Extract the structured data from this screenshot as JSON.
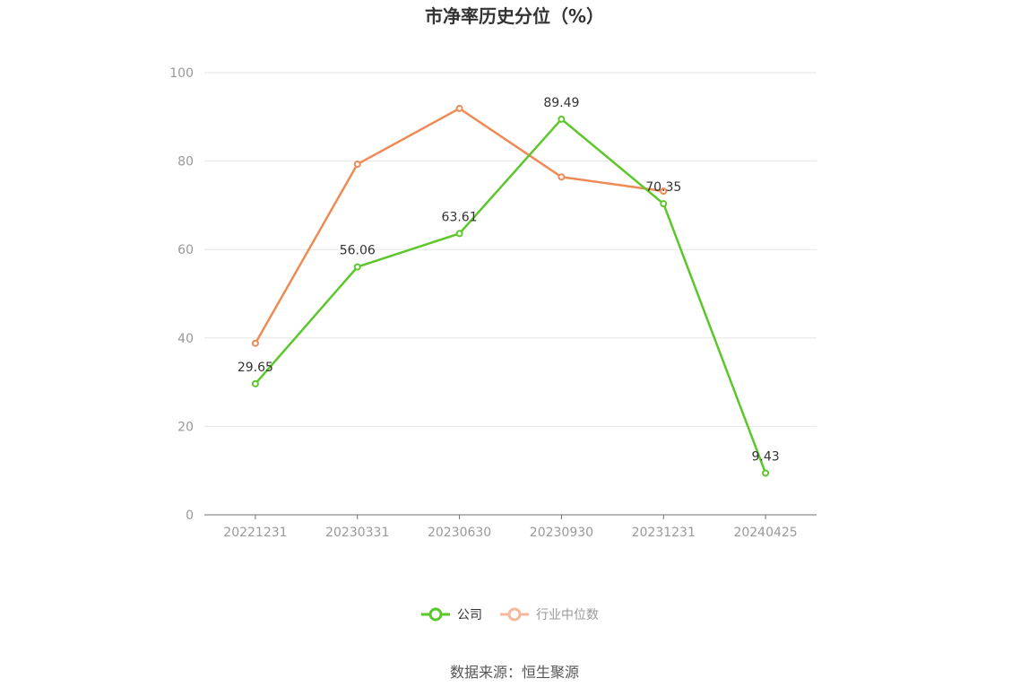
{
  "chart_data": {
    "type": "line",
    "title": "市净率历史分位（%）",
    "categories": [
      "20221231",
      "20230331",
      "20230630",
      "20230930",
      "20231231",
      "20240425"
    ],
    "ylim": [
      0,
      100
    ],
    "yticks": [
      0,
      20,
      40,
      60,
      80,
      100
    ],
    "grid": true,
    "legend_position": "bottom",
    "series": [
      {
        "name": "公司",
        "color": "#5cc72a",
        "values": [
          29.65,
          56.06,
          63.61,
          89.49,
          70.35,
          9.43
        ],
        "labels": [
          "29.65",
          "56.06",
          "63.61",
          "89.49",
          "70.35",
          "9.43"
        ]
      },
      {
        "name": "行业中位数",
        "color": "#f08a55",
        "legend_color": "#f6b79a",
        "values": [
          38.8,
          79.3,
          91.9,
          76.4,
          73.2,
          null
        ]
      }
    ],
    "source": "数据来源：恒生聚源"
  }
}
